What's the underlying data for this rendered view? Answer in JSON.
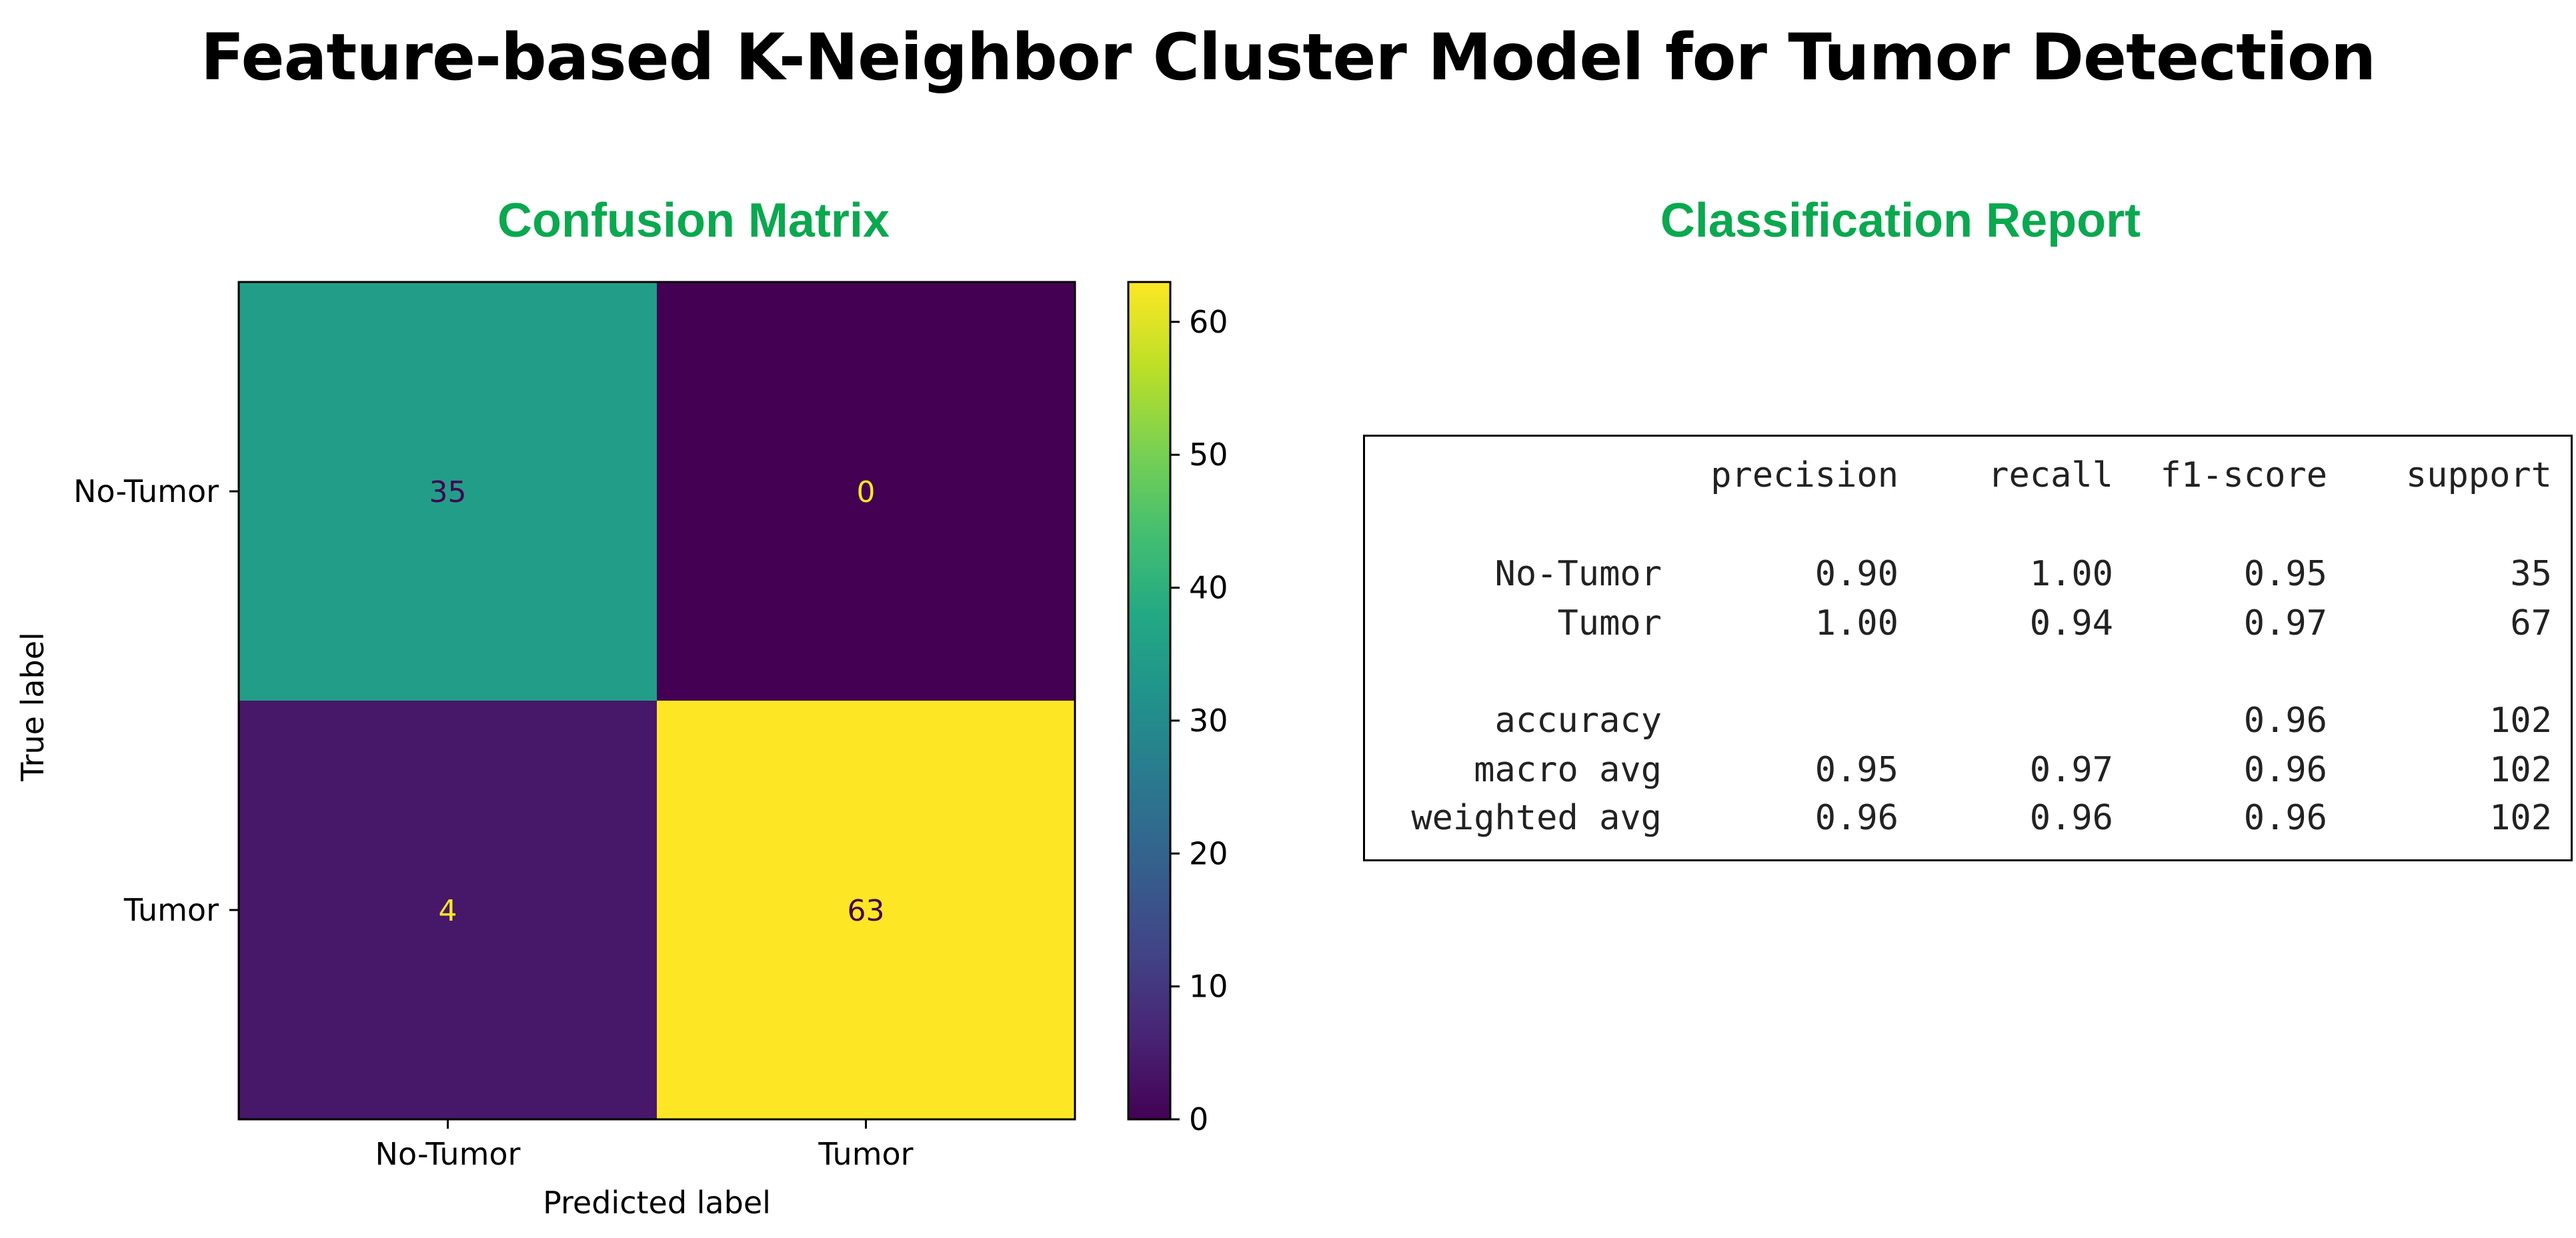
{
  "title": "Feature-based K-Neighbor Cluster Model for Tumor Detection",
  "confusion_title": "Confusion Matrix",
  "report_title": "Classification Report",
  "chart_data": {
    "type": "heatmap",
    "title": "Confusion Matrix",
    "xlabel": "Predicted label",
    "ylabel": "True label",
    "x_categories": [
      "No-Tumor",
      "Tumor"
    ],
    "y_categories": [
      "No-Tumor",
      "Tumor"
    ],
    "values": [
      [
        35,
        0
      ],
      [
        4,
        63
      ]
    ],
    "colormap": "viridis",
    "colorbar": {
      "ticks": [
        0,
        10,
        20,
        30,
        40,
        50,
        60
      ],
      "range": [
        0,
        63
      ]
    },
    "colors": {
      "low": "#440154",
      "high": "#fde725"
    }
  },
  "report": {
    "headers": [
      "precision",
      "recall",
      "f1-score",
      "support"
    ],
    "rows": [
      {
        "label": "No-Tumor",
        "precision": "0.90",
        "recall": "1.00",
        "f1": "0.95",
        "support": "35"
      },
      {
        "label": "Tumor",
        "precision": "1.00",
        "recall": "0.94",
        "f1": "0.97",
        "support": "67"
      },
      {
        "label": "accuracy",
        "precision": "",
        "recall": "",
        "f1": "0.96",
        "support": "102"
      },
      {
        "label": "macro avg",
        "precision": "0.95",
        "recall": "0.97",
        "f1": "0.96",
        "support": "102"
      },
      {
        "label": "weighted avg",
        "precision": "0.96",
        "recall": "0.96",
        "f1": "0.96",
        "support": "102"
      }
    ]
  }
}
